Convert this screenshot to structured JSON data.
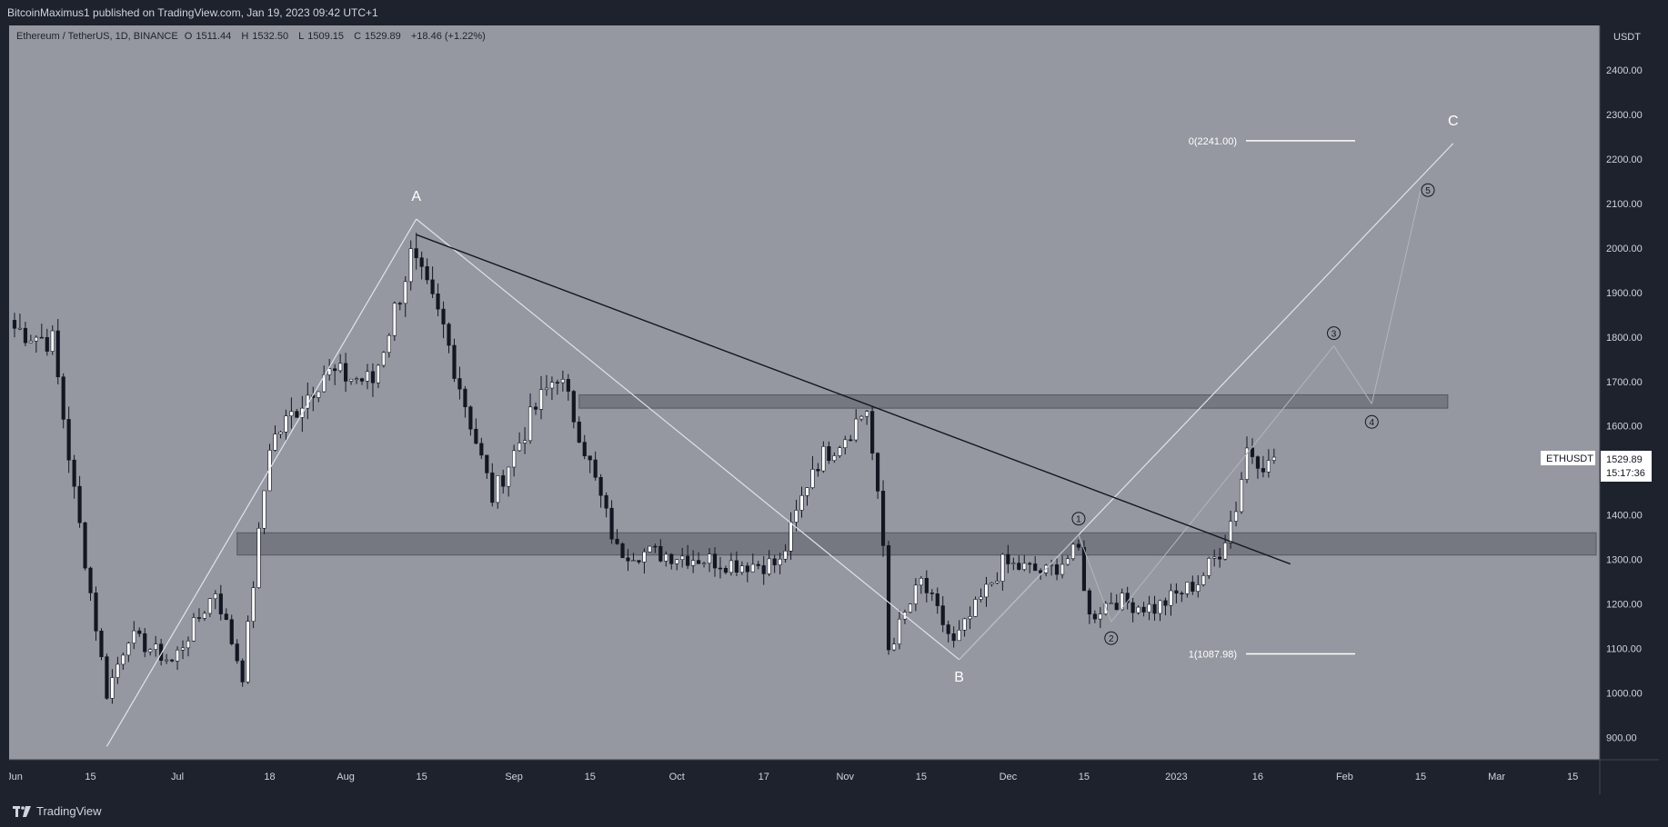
{
  "header": {
    "published": "BitcoinMaximus1 published on TradingView.com, Jan 19, 2023 09:42 UTC+1"
  },
  "legend": {
    "symbol": "Ethereum / TetherUS, 1D, BINANCE",
    "o_label": "O",
    "o": "1511.44",
    "h_label": "H",
    "h": "1532.50",
    "l_label": "L",
    "l": "1509.15",
    "c_label": "C",
    "c": "1529.89",
    "change": "+18.46 (+1.22%)"
  },
  "price_scale": {
    "currency": "USDT",
    "ticks": [
      "2400.00",
      "2300.00",
      "2200.00",
      "2100.00",
      "2000.00",
      "1900.00",
      "1800.00",
      "1700.00",
      "1600.00",
      "1500.00",
      "1400.00",
      "1300.00",
      "1200.00",
      "1100.00",
      "1000.00",
      "900.00"
    ],
    "last_symbol": "ETHUSDT",
    "last_price": "1529.89",
    "countdown": "15:17:36"
  },
  "time_scale": {
    "ticks": [
      "Jun",
      "15",
      "Jul",
      "18",
      "Aug",
      "15",
      "Sep",
      "15",
      "Oct",
      "17",
      "Nov",
      "15",
      "Dec",
      "15",
      "2023",
      "16",
      "Feb",
      "15",
      "Mar",
      "15"
    ]
  },
  "footer": {
    "brand": "TradingView"
  },
  "colors": {
    "plot_bg": "#9598a1",
    "bull": "#ffffff",
    "bear": "#131722",
    "zone": "#6b6e76"
  },
  "chart_data": {
    "type": "candlestick",
    "symbol": "ETHUSDT",
    "interval": "1D",
    "ylim": [
      850,
      2500
    ],
    "x_range": [
      "2022-05-31",
      "2023-03-20"
    ],
    "price_points": [
      {
        "date": "2022-06-01",
        "close": 1820
      },
      {
        "date": "2022-06-08",
        "close": 1790
      },
      {
        "date": "2022-06-12",
        "close": 1450
      },
      {
        "date": "2022-06-18",
        "close": 1000
      },
      {
        "date": "2022-06-22",
        "close": 1130
      },
      {
        "date": "2022-06-30",
        "close": 1070
      },
      {
        "date": "2022-07-08",
        "close": 1230
      },
      {
        "date": "2022-07-13",
        "close": 1040
      },
      {
        "date": "2022-07-18",
        "close": 1560
      },
      {
        "date": "2022-07-28",
        "close": 1720
      },
      {
        "date": "2022-08-06",
        "close": 1700
      },
      {
        "date": "2022-08-13",
        "close": 1980
      },
      {
        "date": "2022-08-19",
        "close": 1820
      },
      {
        "date": "2022-08-28",
        "close": 1440
      },
      {
        "date": "2022-09-05",
        "close": 1640
      },
      {
        "date": "2022-09-09",
        "close": 1720
      },
      {
        "date": "2022-09-13",
        "close": 1590
      },
      {
        "date": "2022-09-20",
        "close": 1320
      },
      {
        "date": "2022-10-01",
        "close": 1310
      },
      {
        "date": "2022-10-12",
        "close": 1290
      },
      {
        "date": "2022-10-20",
        "close": 1290
      },
      {
        "date": "2022-10-26",
        "close": 1510
      },
      {
        "date": "2022-11-01",
        "close": 1580
      },
      {
        "date": "2022-11-05",
        "close": 1640
      },
      {
        "date": "2022-11-08",
        "close": 1330
      },
      {
        "date": "2022-11-09",
        "close": 1100
      },
      {
        "date": "2022-11-15",
        "close": 1250
      },
      {
        "date": "2022-11-21",
        "close": 1110
      },
      {
        "date": "2022-11-30",
        "close": 1290
      },
      {
        "date": "2022-12-08",
        "close": 1270
      },
      {
        "date": "2022-12-14",
        "close": 1320
      },
      {
        "date": "2022-12-16",
        "close": 1170
      },
      {
        "date": "2022-12-20",
        "close": 1210
      },
      {
        "date": "2022-12-28",
        "close": 1190
      },
      {
        "date": "2023-01-05",
        "close": 1250
      },
      {
        "date": "2023-01-09",
        "close": 1320
      },
      {
        "date": "2023-01-12",
        "close": 1420
      },
      {
        "date": "2023-01-14",
        "close": 1550
      },
      {
        "date": "2023-01-18",
        "close": 1510
      },
      {
        "date": "2023-01-19",
        "close": 1529.89
      }
    ],
    "annotations": {
      "waves": [
        {
          "label": "A",
          "date": "2022-08-14",
          "price": 2065
        },
        {
          "label": "B",
          "date": "2022-11-22",
          "price": 1075
        },
        {
          "label": "C",
          "date": "2023-02-21",
          "price": 2235
        }
      ],
      "wave_start": {
        "date": "2022-06-18",
        "price": 880
      },
      "sub_waves": [
        {
          "label": "1",
          "date": "2022-12-14",
          "price": 1355
        },
        {
          "label": "2",
          "date": "2022-12-20",
          "price": 1160
        },
        {
          "label": "3",
          "date": "2023-01-30",
          "price": 1780
        },
        {
          "label": "4",
          "date": "2023-02-06",
          "price": 1650
        },
        {
          "label": "5",
          "date": "2023-02-15",
          "price": 2130
        }
      ],
      "fib_levels": [
        {
          "label": "0(2241.00)",
          "price": 2241.0
        },
        {
          "label": "1(1087.98)",
          "price": 1087.98
        }
      ],
      "zones": [
        {
          "from": 1640,
          "to": 1670,
          "start": "2022-09-13",
          "end": "2023-02-20"
        },
        {
          "from": 1310,
          "to": 1360,
          "start": "2022-07-12",
          "end": "2023-03-25"
        }
      ],
      "resistance_line": [
        {
          "date": "2022-08-14",
          "price": 2030
        },
        {
          "date": "2023-01-22",
          "price": 1290
        }
      ]
    }
  }
}
